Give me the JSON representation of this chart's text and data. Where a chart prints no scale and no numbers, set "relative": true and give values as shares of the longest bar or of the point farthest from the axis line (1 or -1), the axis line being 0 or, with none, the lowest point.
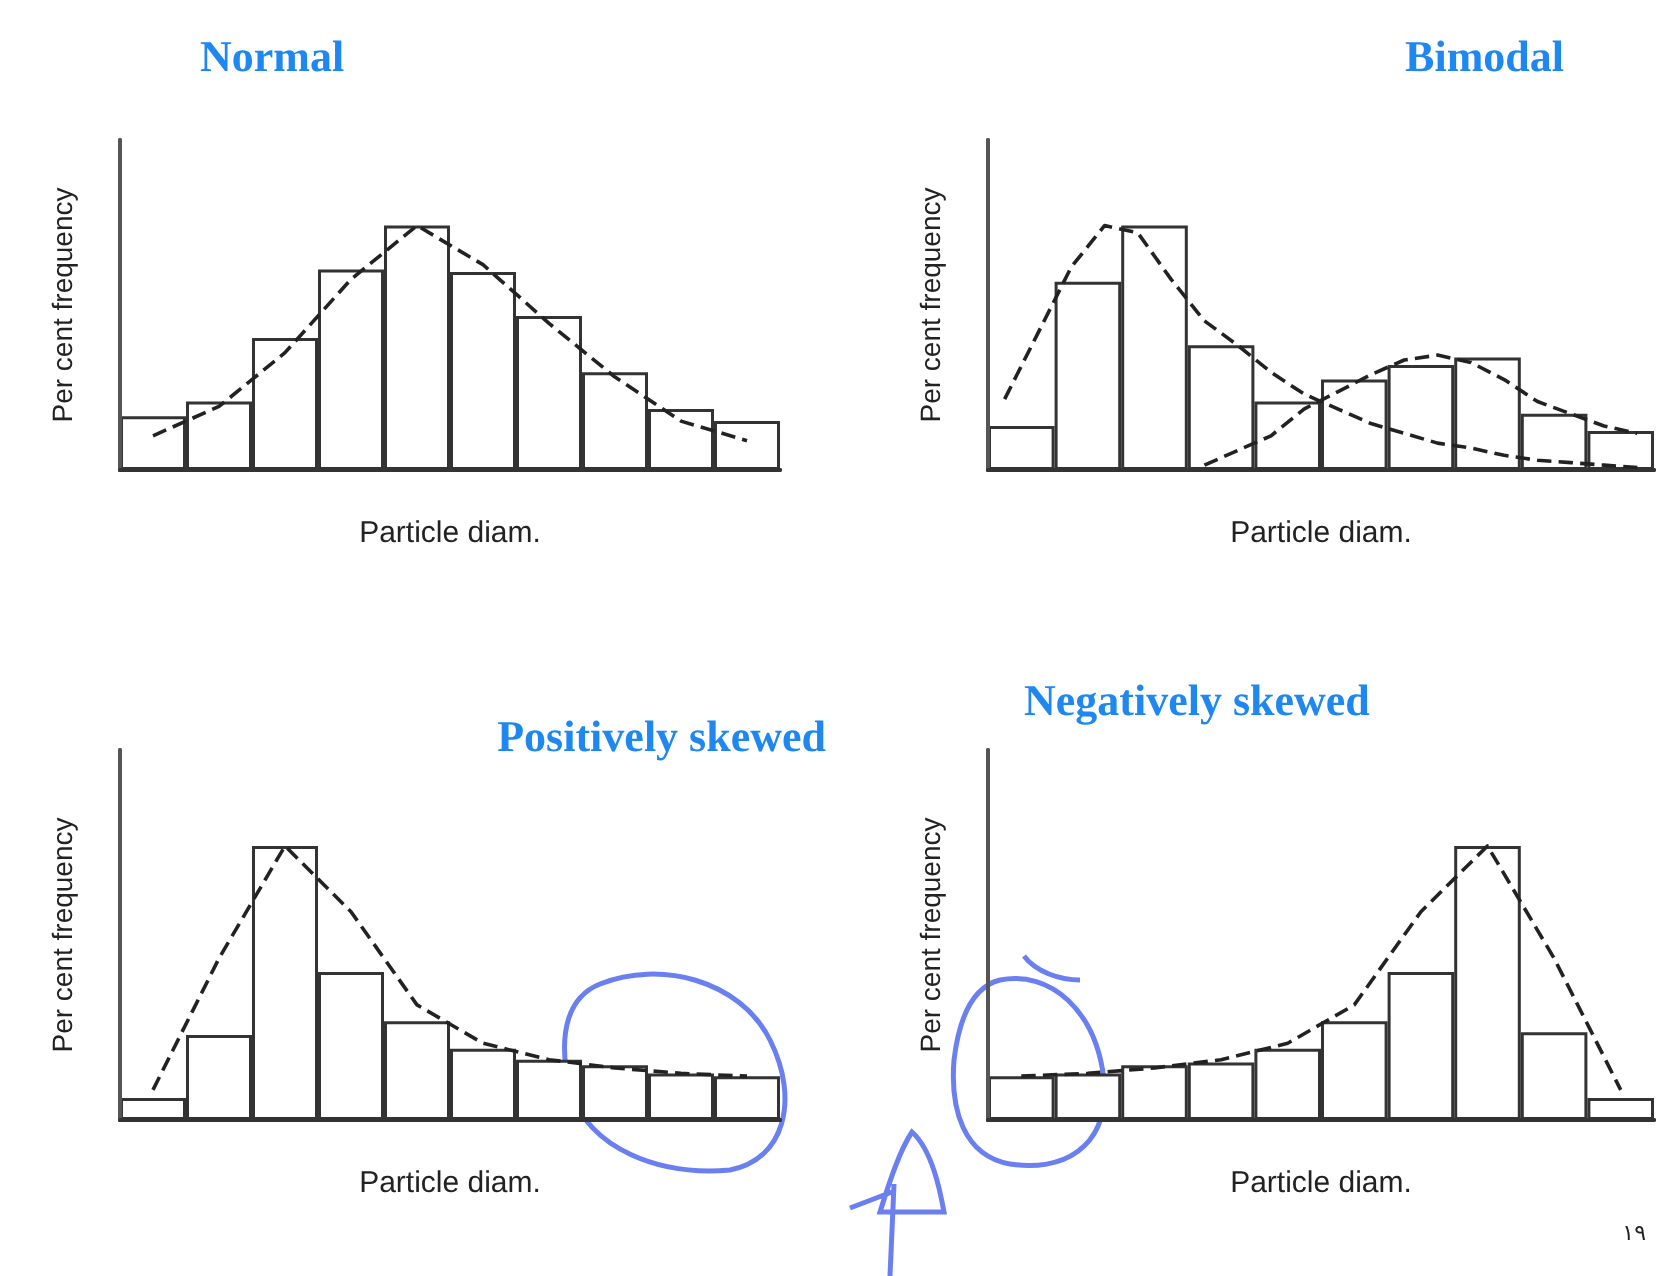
{
  "chart_data": [
    {
      "type": "bar",
      "title": "Normal",
      "xlabel": "Particle diam.",
      "ylabel": "Per cent frequency",
      "relative": true,
      "categories": [
        null,
        null,
        null,
        null,
        null,
        null,
        null,
        null,
        null,
        null
      ],
      "color": "#ffffff",
      "values": [
        0.22,
        0.28,
        0.54,
        0.82,
        1,
        0.81,
        0.63,
        0.4,
        0.25,
        0.2
      ]
    },
    {
      "type": "line",
      "relative": true,
      "marker": "none",
      "line_style": "dashed",
      "categories": [
        null,
        null,
        null,
        null,
        null,
        null,
        null,
        null,
        null,
        null
      ],
      "color": "#222222",
      "values": [
        0.14,
        0.26,
        0.48,
        0.78,
        1,
        0.84,
        0.6,
        0.38,
        0.2,
        0.12
      ]
    },
    {
      "type": "bar",
      "title": "Bimodal",
      "xlabel": "Particle diam.",
      "ylabel": "Per cent frequency",
      "relative": true,
      "categories": [
        null,
        null,
        null,
        null,
        null,
        null,
        null,
        null,
        null,
        null
      ],
      "color": "#ffffff",
      "values": [
        0.18,
        0.77,
        1,
        0.51,
        0.28,
        0.37,
        0.43,
        0.46,
        0.23,
        0.16
      ]
    },
    {
      "type": "line",
      "relative": true,
      "marker": "none",
      "line_style": "dashed",
      "categories": [
        null,
        null,
        null,
        null,
        null,
        null,
        null,
        null,
        null,
        null,
        null,
        null,
        null,
        null,
        null,
        null,
        null,
        null,
        null,
        null
      ],
      "series": [
        {
          "color": "#222222",
          "values": [
            0.29,
            0.56,
            0.83,
            1,
            0.97,
            0.78,
            0.61,
            0.51,
            0.4,
            0.31,
            0.25,
            0.19,
            0.15,
            0.11,
            0.09,
            0.06,
            0.04,
            0.03,
            0.02,
            0.01
          ]
        },
        {
          "color": "#222222",
          "values": [
            null,
            null,
            null,
            null,
            null,
            null,
            0.02,
            0.08,
            0.14,
            0.25,
            0.32,
            0.39,
            0.45,
            0.47,
            0.44,
            0.37,
            0.28,
            0.23,
            0.18,
            0.15
          ]
        }
      ]
    },
    {
      "type": "bar",
      "title": "Positively skewed",
      "xlabel": "Particle diam.",
      "ylabel": "Per cent frequency",
      "relative": true,
      "categories": [
        null,
        null,
        null,
        null,
        null,
        null,
        null,
        null,
        null,
        null
      ],
      "color": "#ffffff",
      "values": [
        0.08,
        0.31,
        1,
        0.54,
        0.36,
        0.26,
        0.22,
        0.2,
        0.17,
        0.16
      ]
    },
    {
      "type": "line",
      "relative": true,
      "marker": "none",
      "line_style": "dashed",
      "categories": [
        null,
        null,
        null,
        null,
        null,
        null,
        null,
        null,
        null,
        null
      ],
      "color": "#222222",
      "values": [
        0.11,
        0.59,
        1,
        0.76,
        0.42,
        0.28,
        0.22,
        0.19,
        0.17,
        0.16
      ]
    },
    {
      "type": "bar",
      "title": "Negatively skewed",
      "xlabel": "Particle diam.",
      "ylabel": "Per cent frequency",
      "relative": true,
      "annotations": [
        "١٩"
      ],
      "categories": [
        null,
        null,
        null,
        null,
        null,
        null,
        null,
        null,
        null,
        null
      ],
      "color": "#ffffff",
      "values": [
        0.16,
        0.17,
        0.2,
        0.21,
        0.26,
        0.36,
        0.54,
        1,
        0.32,
        0.08
      ]
    },
    {
      "type": "line",
      "relative": true,
      "marker": "none",
      "line_style": "dashed",
      "categories": [
        null,
        null,
        null,
        null,
        null,
        null,
        null,
        null,
        null,
        null
      ],
      "color": "#222222",
      "values": [
        0.16,
        0.17,
        0.19,
        0.22,
        0.28,
        0.42,
        0.76,
        1,
        0.59,
        0.11
      ]
    }
  ]
}
